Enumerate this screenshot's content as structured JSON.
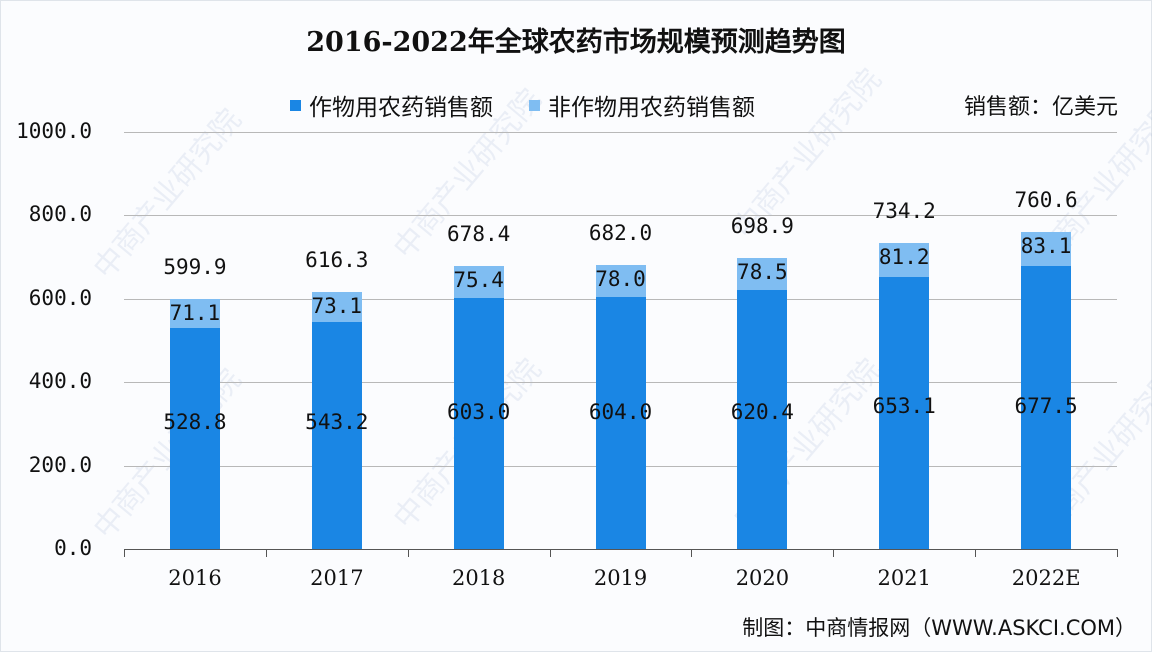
{
  "title": "2016-2022年全球农药市场规模预测趋势图",
  "unit_label": "销售额：亿美元",
  "source_label": "制图：中商情报网（WWW.ASKCI.COM）",
  "watermark": "中商产业研究院",
  "colors": {
    "crop": "#1a86e4",
    "noncrop": "#7fbdf2",
    "grid": "#b8b8b8"
  },
  "legend": [
    {
      "label": "作物用农药销售额",
      "color": "#1a86e4"
    },
    {
      "label": "非作物用农药销售额",
      "color": "#7fbdf2"
    }
  ],
  "y_ticks": [
    "0.0",
    "200.0",
    "400.0",
    "600.0",
    "800.0",
    "1000.0"
  ],
  "chart_data": {
    "type": "bar",
    "stacked": true,
    "title": "2016-2022年全球农药市场规模预测趋势图",
    "xlabel": "",
    "ylabel": "销售额：亿美元",
    "ylim": [
      0,
      1000
    ],
    "grid": true,
    "legend_position": "top",
    "categories": [
      "2016",
      "2017",
      "2018",
      "2019",
      "2020",
      "2021",
      "2022E"
    ],
    "series": [
      {
        "name": "作物用农药销售额",
        "values": [
          528.8,
          543.2,
          603.0,
          604.0,
          620.4,
          653.1,
          677.5
        ]
      },
      {
        "name": "非作物用农药销售额",
        "values": [
          71.1,
          73.1,
          75.4,
          78.0,
          78.5,
          81.2,
          83.1
        ]
      }
    ],
    "totals": [
      599.9,
      616.3,
      678.4,
      682.0,
      698.9,
      734.2,
      760.6
    ],
    "total_labels": [
      "599.9",
      "616.3",
      "678.4",
      "682.0",
      "698.9",
      "734.2",
      "760.6"
    ],
    "crop_labels": [
      "528.8",
      "543.2",
      "603.0",
      "604.0",
      "620.4",
      "653.1",
      "677.5"
    ],
    "noncrop_labels": [
      "71.1",
      "73.1",
      "75.4",
      "78.0",
      "78.5",
      "81.2",
      "83.1"
    ]
  }
}
